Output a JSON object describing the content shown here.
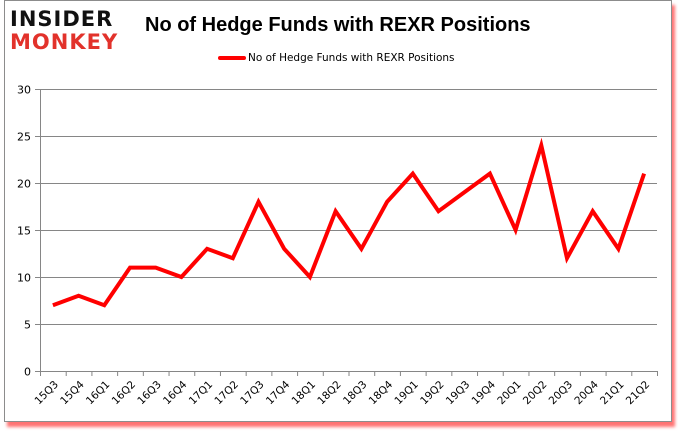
{
  "logo": {
    "line1": "INSIDER",
    "line2": "MONKEY"
  },
  "chart_data": {
    "type": "line",
    "title": "No of Hedge Funds with REXR Positions",
    "xlabel": "",
    "ylabel": "",
    "ylim": [
      0,
      30
    ],
    "yticks": [
      0,
      5,
      10,
      15,
      20,
      25,
      30
    ],
    "grid": true,
    "legend_position": "top",
    "categories": [
      "15Q3",
      "15Q4",
      "16Q1",
      "16Q2",
      "16Q3",
      "16Q4",
      "17Q1",
      "17Q2",
      "17Q3",
      "17Q4",
      "18Q1",
      "18Q2",
      "18Q3",
      "18Q4",
      "19Q1",
      "19Q2",
      "19Q3",
      "19Q4",
      "20Q1",
      "20Q2",
      "20Q3",
      "20Q4",
      "21Q1",
      "21Q2"
    ],
    "series": [
      {
        "name": "No of Hedge Funds with REXR Positions",
        "color": "#ff0000",
        "values": [
          7,
          8,
          7,
          11,
          11,
          10,
          13,
          12,
          18,
          13,
          10,
          17,
          13,
          18,
          21,
          17,
          19,
          21,
          15,
          24,
          12,
          17,
          13,
          21
        ]
      }
    ]
  }
}
